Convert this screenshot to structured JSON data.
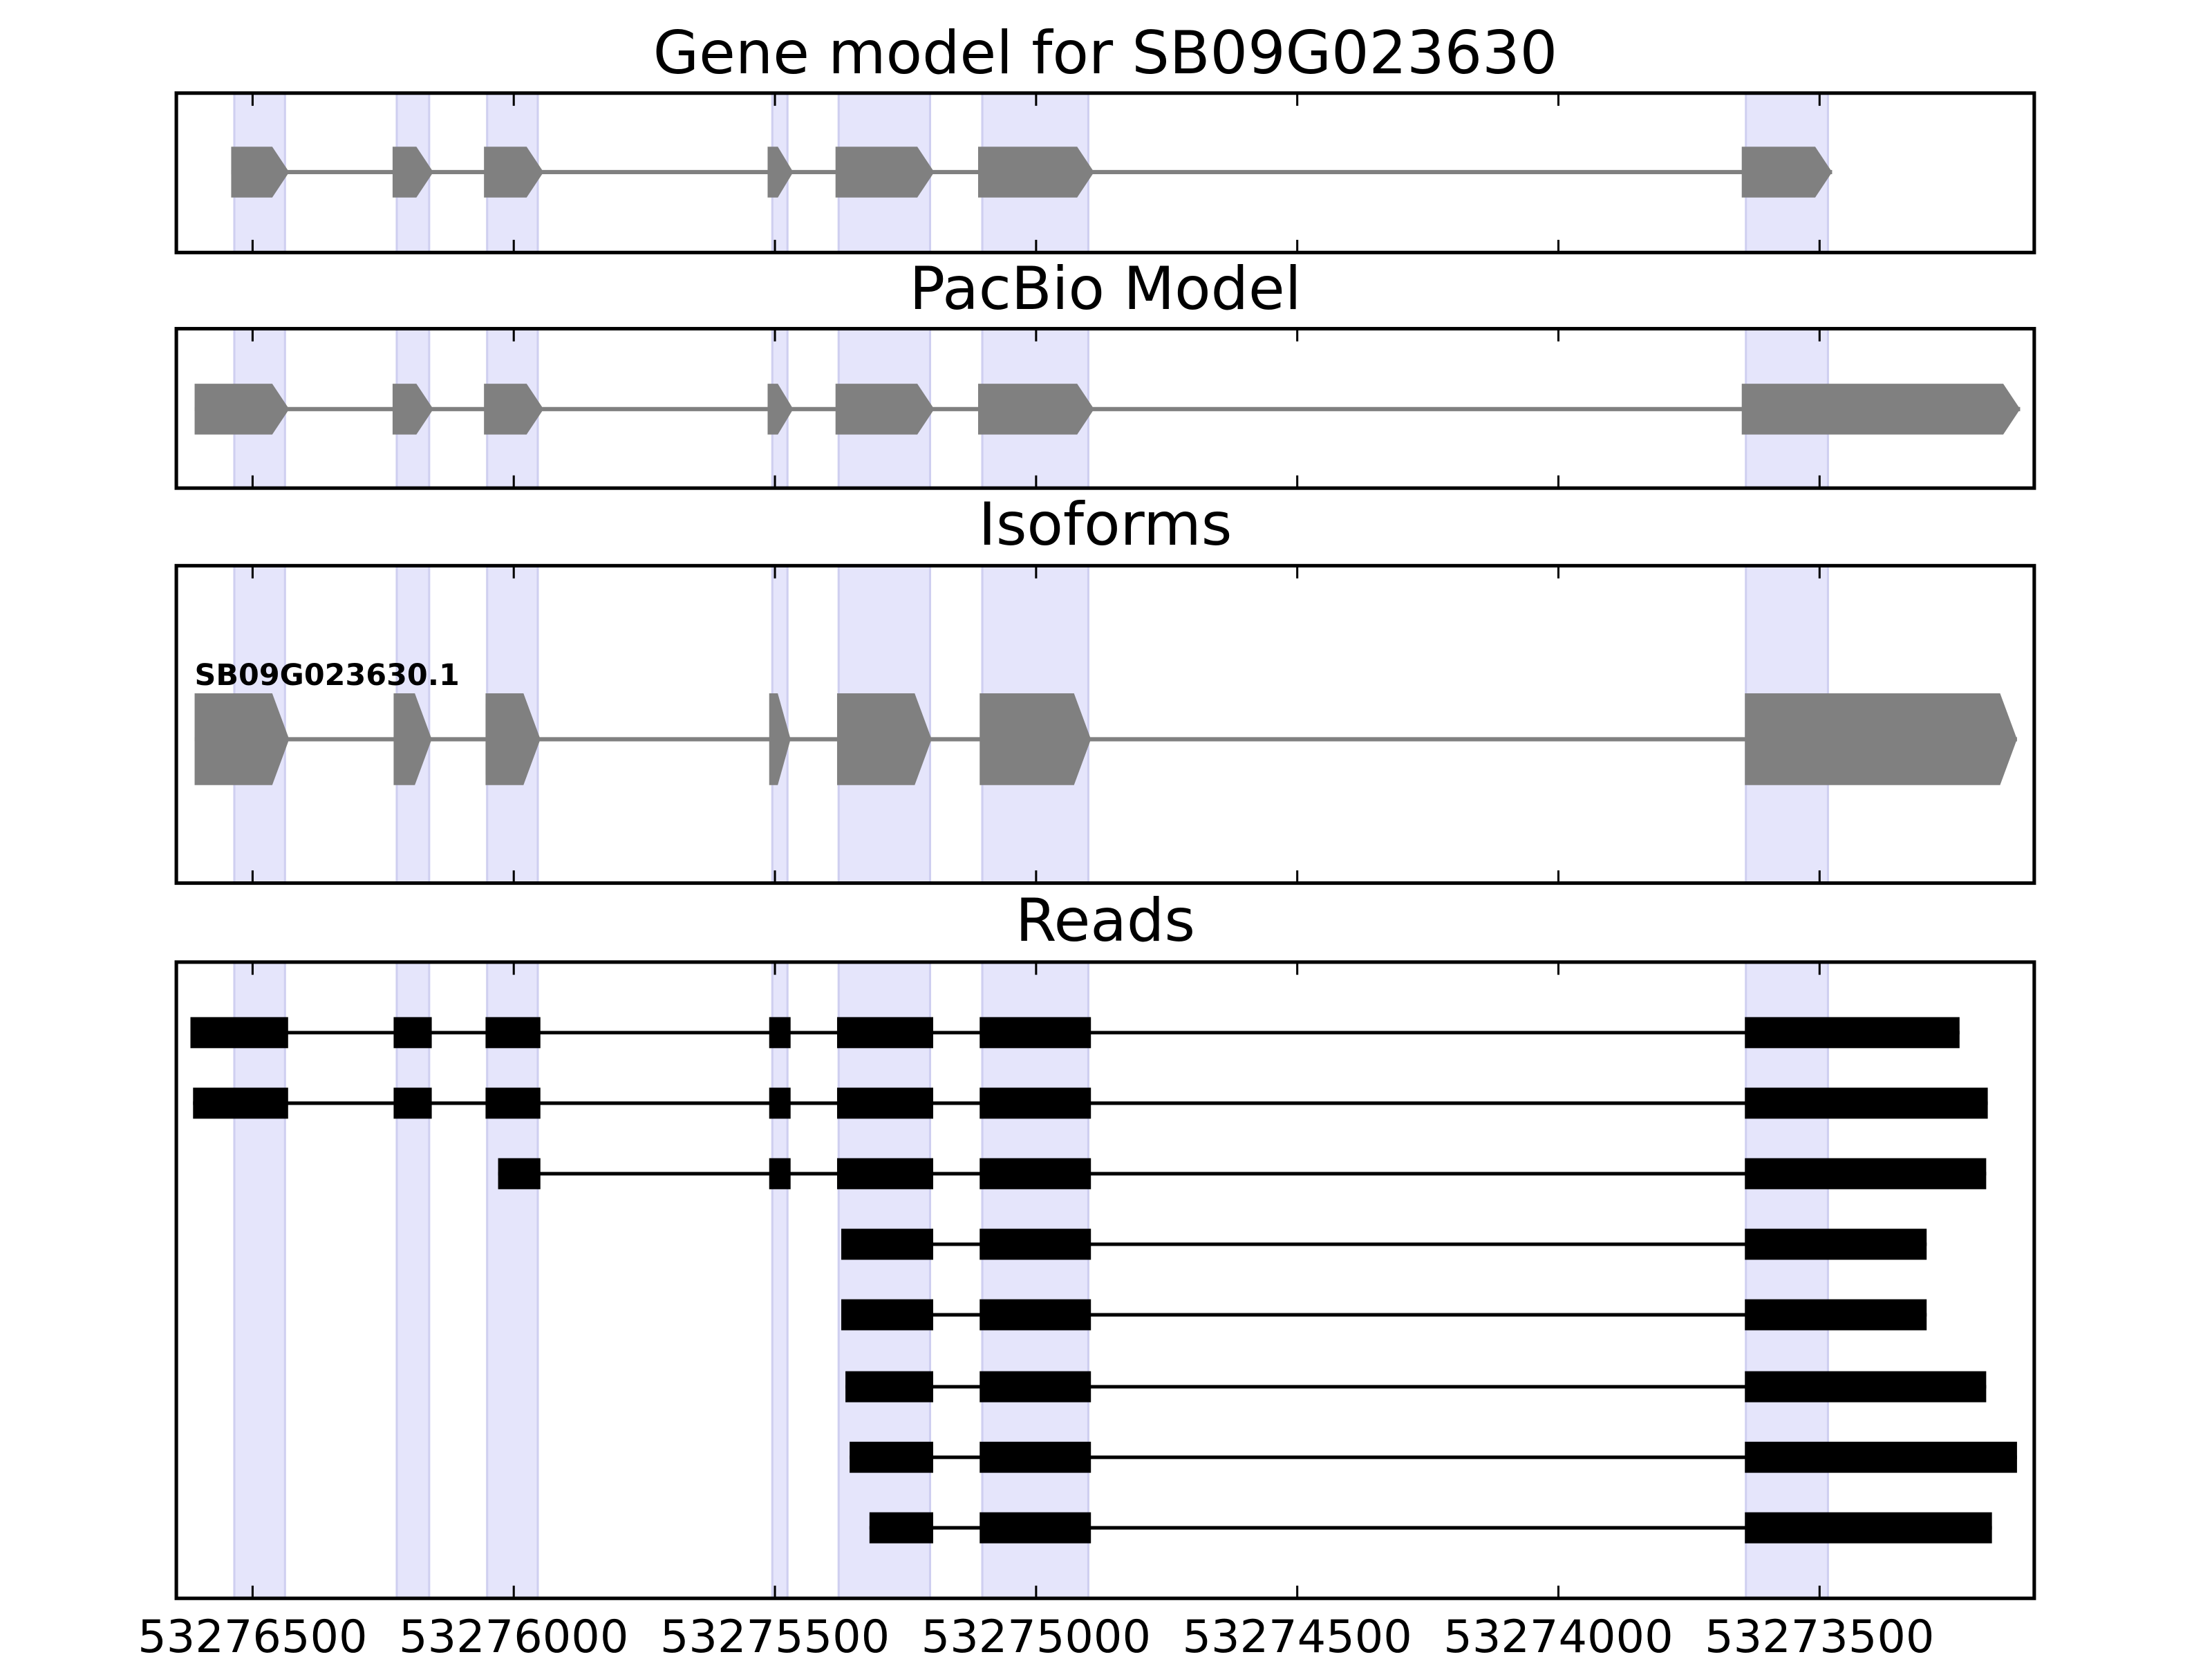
{
  "chart_data": {
    "type": "gene-tracks",
    "xlim": [
      53276646,
      53273089
    ],
    "xticks": [
      53276500,
      53276000,
      53275500,
      53275000,
      53274500,
      53274000,
      53273500
    ],
    "highlights": [
      [
        53276535,
        53276438
      ],
      [
        53276224,
        53276162
      ],
      [
        53276051,
        53275954
      ],
      [
        53275505,
        53275476
      ],
      [
        53275378,
        53275203
      ],
      [
        53275103,
        53274900
      ],
      [
        53273641,
        53273484
      ]
    ],
    "panels": [
      {
        "type": "arrow",
        "title": "Gene model for SB09G023630",
        "tracks": [
          {
            "exons": [
              [
                53276541,
                53276430
              ],
              [
                53276232,
                53276154
              ],
              [
                53276057,
                53275943
              ],
              [
                53275514,
                53275465
              ],
              [
                53275384,
                53275195
              ],
              [
                53275111,
                53274889
              ],
              [
                53273649,
                53273476
              ]
            ]
          }
        ]
      },
      {
        "type": "arrow",
        "title": "PacBio Model",
        "tracks": [
          {
            "exons": [
              [
                53276611,
                53276430
              ],
              [
                53276232,
                53276154
              ],
              [
                53276057,
                53275943
              ],
              [
                53275514,
                53275465
              ],
              [
                53275384,
                53275195
              ],
              [
                53275111,
                53274889
              ],
              [
                53273649,
                53273116
              ]
            ]
          }
        ]
      },
      {
        "type": "arrow",
        "title": "Isoforms",
        "tracks": [
          {
            "name": "SB09G023630.1",
            "exons": [
              [
                53276611,
                53276430
              ],
              [
                53276230,
                53276157
              ],
              [
                53276054,
                53275949
              ],
              [
                53275511,
                53275470
              ],
              [
                53275381,
                53275200
              ],
              [
                53275108,
                53274895
              ],
              [
                53273643,
                53273122
              ]
            ]
          }
        ]
      },
      {
        "type": "blocks",
        "title": "Reads",
        "tracks": [
          {
            "exons": [
              [
                53276619,
                53276432
              ],
              [
                53276230,
                53276157
              ],
              [
                53276054,
                53275949
              ],
              [
                53275511,
                53275470
              ],
              [
                53275381,
                53275197
              ],
              [
                53275108,
                53274895
              ],
              [
                53273643,
                53273232
              ]
            ]
          },
          {
            "exons": [
              [
                53276614,
                53276432
              ],
              [
                53276230,
                53276157
              ],
              [
                53276054,
                53275949
              ],
              [
                53275511,
                53275470
              ],
              [
                53275381,
                53275197
              ],
              [
                53275108,
                53274895
              ],
              [
                53273643,
                53273178
              ]
            ]
          },
          {
            "exons": [
              [
                53276030,
                53275949
              ],
              [
                53275511,
                53275470
              ],
              [
                53275381,
                53275197
              ],
              [
                53275108,
                53274895
              ],
              [
                53273643,
                53273181
              ]
            ]
          },
          {
            "exons": [
              [
                53275373,
                53275197
              ],
              [
                53275108,
                53274895
              ],
              [
                53273643,
                53273295
              ]
            ]
          },
          {
            "exons": [
              [
                53275373,
                53275197
              ],
              [
                53275108,
                53274895
              ],
              [
                53273643,
                53273295
              ]
            ]
          },
          {
            "exons": [
              [
                53275365,
                53275197
              ],
              [
                53275108,
                53274895
              ],
              [
                53273643,
                53273181
              ]
            ]
          },
          {
            "exons": [
              [
                53275357,
                53275197
              ],
              [
                53275108,
                53274895
              ],
              [
                53273643,
                53273122
              ]
            ]
          },
          {
            "exons": [
              [
                53275319,
                53275197
              ],
              [
                53275108,
                53274895
              ],
              [
                53273643,
                53273170
              ]
            ]
          }
        ]
      }
    ]
  }
}
